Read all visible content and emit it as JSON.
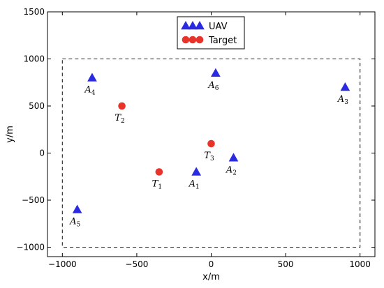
{
  "chart_data": {
    "type": "scatter",
    "xlabel": "x/m",
    "ylabel": "y/m",
    "xlim": [
      -1100,
      1100
    ],
    "ylim": [
      -1100,
      1500
    ],
    "xticks": [
      -1000,
      -500,
      0,
      500,
      1000
    ],
    "yticks": [
      -1000,
      -500,
      0,
      500,
      1000,
      1500
    ],
    "xtick_labels": [
      "−1000",
      "−500",
      "0",
      "500",
      "1000"
    ],
    "ytick_labels": [
      "−1000",
      "−500",
      "0",
      "500",
      "1000",
      "1500"
    ],
    "grid": false,
    "legend_position": "top-center",
    "boundary": {
      "x": [
        -1000,
        1000
      ],
      "y": [
        -1000,
        1000
      ],
      "style": "dashed"
    },
    "series": [
      {
        "name": "UAV",
        "marker": "triangle",
        "color": "#2a2ae0",
        "points": [
          {
            "label": "A",
            "sub": "1",
            "x": -100,
            "y": -200
          },
          {
            "label": "A",
            "sub": "2",
            "x": 150,
            "y": -50
          },
          {
            "label": "A",
            "sub": "3",
            "x": 900,
            "y": 700
          },
          {
            "label": "A",
            "sub": "4",
            "x": -800,
            "y": 800
          },
          {
            "label": "A",
            "sub": "5",
            "x": -900,
            "y": -600
          },
          {
            "label": "A",
            "sub": "6",
            "x": 30,
            "y": 850
          }
        ]
      },
      {
        "name": "Target",
        "marker": "circle",
        "color": "#e8332a",
        "points": [
          {
            "label": "T",
            "sub": "1",
            "x": -350,
            "y": -200
          },
          {
            "label": "T",
            "sub": "2",
            "x": -600,
            "y": 500
          },
          {
            "label": "T",
            "sub": "3",
            "x": 0,
            "y": 100
          }
        ]
      }
    ]
  }
}
